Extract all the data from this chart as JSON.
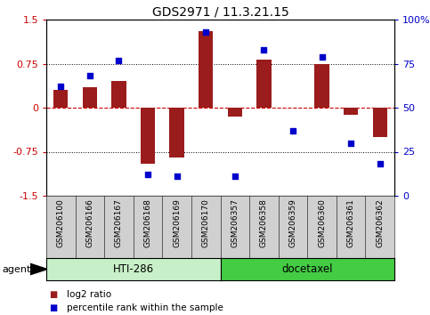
{
  "title": "GDS2971 / 11.3.21.15",
  "samples": [
    "GSM206100",
    "GSM206166",
    "GSM206167",
    "GSM206168",
    "GSM206169",
    "GSM206170",
    "GSM206357",
    "GSM206358",
    "GSM206359",
    "GSM206360",
    "GSM206361",
    "GSM206362"
  ],
  "log2_ratio": [
    0.3,
    0.35,
    0.45,
    -0.95,
    -0.85,
    1.3,
    -0.15,
    0.82,
    0.0,
    0.75,
    -0.12,
    -0.5
  ],
  "percentile_rank": [
    62,
    68,
    77,
    12,
    11,
    93,
    11,
    83,
    37,
    79,
    30,
    18
  ],
  "ylim": [
    -1.5,
    1.5
  ],
  "yticks_left": [
    -1.5,
    -0.75,
    0,
    0.75,
    1.5
  ],
  "yticks_right": [
    0,
    25,
    50,
    75,
    100
  ],
  "bar_color": "#9B1C1C",
  "scatter_color": "#0000CC",
  "zero_line_color": "#CC0000",
  "dotted_line_color": "#000000",
  "groups": [
    {
      "label": "HTI-286",
      "start": 0,
      "end": 5,
      "color": "#C8F0C8"
    },
    {
      "label": "docetaxel",
      "start": 6,
      "end": 11,
      "color": "#44CC44"
    }
  ],
  "agent_label": "agent",
  "legend": [
    {
      "label": "log2 ratio",
      "color": "#9B1C1C"
    },
    {
      "label": "percentile rank within the sample",
      "color": "#0000CC"
    }
  ],
  "sample_box_color": "#D0D0D0",
  "tick_label_fontsize": 6.5,
  "title_fontsize": 10,
  "bar_width": 0.5
}
